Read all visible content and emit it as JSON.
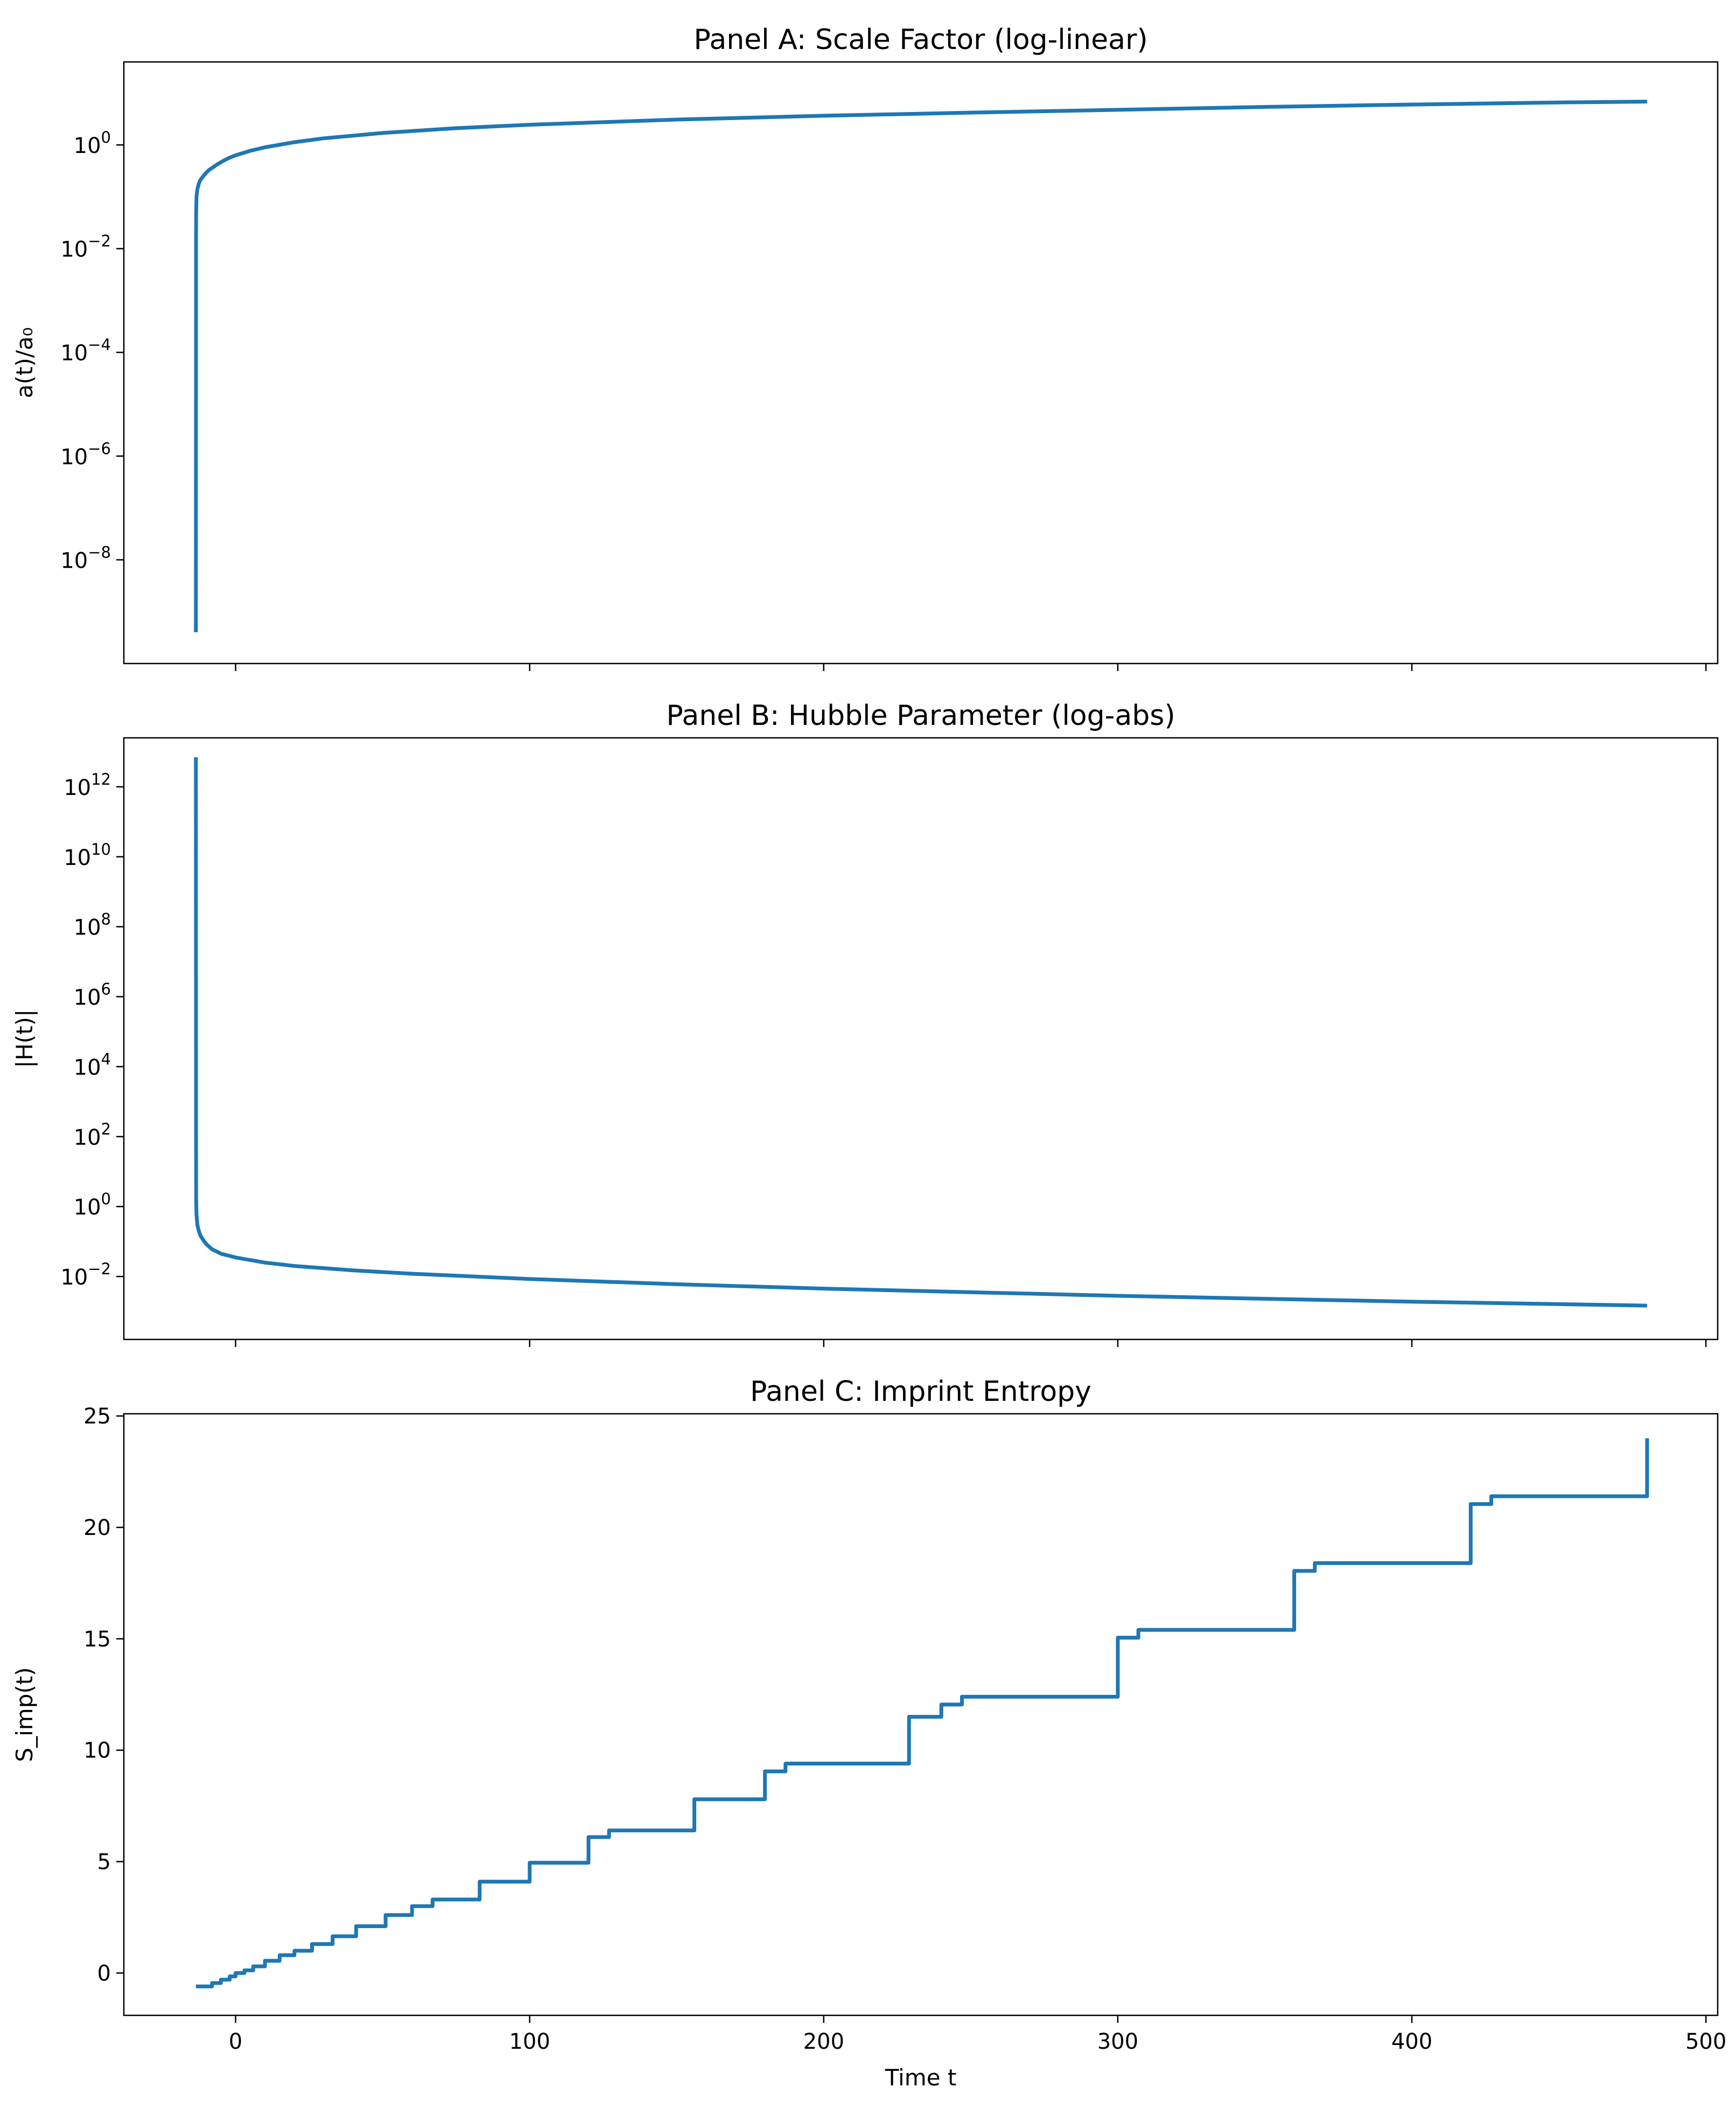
{
  "chart_data": [
    {
      "type": "line",
      "title": "Panel A: Scale Factor (log-linear)",
      "xlabel": "",
      "ylabel": "a(t)/a₀",
      "yscale": "log",
      "xlim": [
        -38,
        504
      ],
      "ylim_log10": [
        -10.0,
        1.6
      ],
      "grid": false,
      "legend": "none",
      "xticks": [
        0,
        100,
        200,
        300,
        400,
        500
      ],
      "xtick_labels_shown": false,
      "yticks": [
        {
          "base": "10",
          "exp": "0",
          "value": 1
        },
        {
          "base": "10",
          "exp": "−2",
          "value": 0.01
        },
        {
          "base": "10",
          "exp": "−4",
          "value": 0.0001
        },
        {
          "base": "10",
          "exp": "−6",
          "value": 1e-06
        },
        {
          "base": "10",
          "exp": "−8",
          "value": 1e-08
        }
      ],
      "color": "#1f77b4",
      "series": [
        {
          "x": [
            -13.5,
            -13.45,
            -13.4,
            -13.3,
            -13.0,
            -12.5,
            -12,
            -11,
            -10,
            -9,
            -8,
            -6,
            -4,
            -2,
            0,
            5,
            10,
            20,
            30,
            50,
            75,
            100,
            150,
            200,
            250,
            300,
            350,
            400,
            450,
            480
          ],
          "y": [
            4e-10,
            0.02,
            0.05,
            0.1,
            0.14,
            0.18,
            0.21,
            0.25,
            0.29,
            0.33,
            0.36,
            0.43,
            0.5,
            0.57,
            0.63,
            0.77,
            0.9,
            1.13,
            1.34,
            1.7,
            2.1,
            2.45,
            3.08,
            3.65,
            4.2,
            4.75,
            5.4,
            6.0,
            6.6,
            6.85
          ]
        }
      ]
    },
    {
      "type": "line",
      "title": "Panel B: Hubble Parameter (log-abs)",
      "xlabel": "",
      "ylabel": "|H(t)|",
      "yscale": "log",
      "xlim": [
        -38,
        504
      ],
      "ylim_log10": [
        -3.8,
        13.4
      ],
      "grid": false,
      "legend": "none",
      "xticks": [
        0,
        100,
        200,
        300,
        400,
        500
      ],
      "xtick_labels_shown": false,
      "yticks": [
        {
          "base": "10",
          "exp": "12",
          "value": 1000000000000.0
        },
        {
          "base": "10",
          "exp": "10",
          "value": 10000000000.0
        },
        {
          "base": "10",
          "exp": "8",
          "value": 100000000.0
        },
        {
          "base": "10",
          "exp": "6",
          "value": 1000000.0
        },
        {
          "base": "10",
          "exp": "4",
          "value": 10000.0
        },
        {
          "base": "10",
          "exp": "2",
          "value": 100
        },
        {
          "base": "10",
          "exp": "0",
          "value": 1
        },
        {
          "base": "10",
          "exp": "−2",
          "value": 0.01
        }
      ],
      "color": "#1f77b4",
      "series": [
        {
          "x": [
            -13.5,
            -13.45,
            -13.4,
            -13.3,
            -13.0,
            -12.5,
            -12,
            -11,
            -10,
            -8,
            -5,
            0,
            10,
            20,
            40,
            60,
            100,
            150,
            200,
            300,
            400,
            480
          ],
          "y": [
            7000000000000.0,
            100,
            1.5,
            0.6,
            0.3,
            0.2,
            0.15,
            0.11,
            0.085,
            0.06,
            0.045,
            0.035,
            0.025,
            0.02,
            0.015,
            0.012,
            0.0085,
            0.006,
            0.0045,
            0.0028,
            0.0019,
            0.00147
          ]
        }
      ]
    },
    {
      "type": "line",
      "title": "Panel C: Imprint Entropy",
      "xlabel": "Time t",
      "ylabel": "S_imp(t)",
      "yscale": "linear",
      "xlim": [
        -38,
        504
      ],
      "ylim": [
        -1.9,
        25.1
      ],
      "grid": false,
      "legend": "none",
      "xticks": [
        0,
        100,
        200,
        300,
        400,
        500
      ],
      "xtick_labels": [
        "0",
        "100",
        "200",
        "300",
        "400",
        "500"
      ],
      "yticks": [
        0,
        5,
        10,
        15,
        20,
        25
      ],
      "ytick_labels": [
        "0",
        "5",
        "10",
        "15",
        "20",
        "25"
      ],
      "color": "#1f77b4",
      "series": [
        {
          "step": "post",
          "x": [
            -13.5,
            -8,
            -5,
            -2,
            0,
            3,
            6,
            10,
            15,
            20,
            26,
            33,
            41,
            51,
            60,
            67,
            83,
            100,
            120,
            127,
            156,
            180,
            187,
            229,
            240,
            247,
            300,
            307,
            360,
            367,
            420,
            427,
            480
          ],
          "y": [
            -0.6,
            -0.45,
            -0.3,
            -0.15,
            0.0,
            0.12,
            0.3,
            0.55,
            0.8,
            1.0,
            1.3,
            1.65,
            2.1,
            2.6,
            3.0,
            3.3,
            4.1,
            4.95,
            6.1,
            6.4,
            7.8,
            9.05,
            9.4,
            11.5,
            12.05,
            12.4,
            15.05,
            15.4,
            18.05,
            18.4,
            21.05,
            21.4,
            24.0
          ]
        }
      ]
    }
  ]
}
